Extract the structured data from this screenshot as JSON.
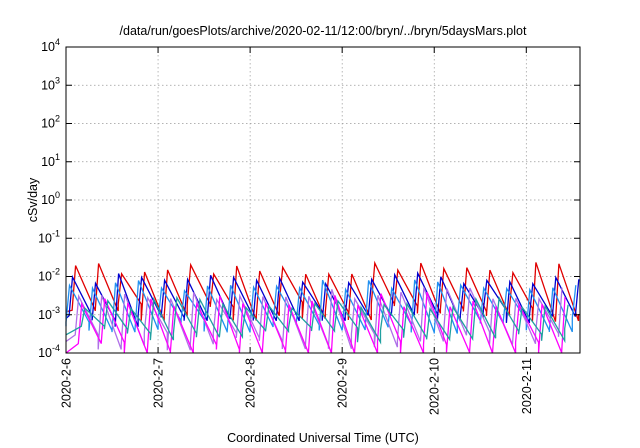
{
  "chart_data": {
    "type": "line",
    "title": "/data/run/goesPlots/archive/2020-02-11/12:00/bryn/../bryn/5daysMars.plot",
    "xlabel": "Coordinated Universal Time (UTC)",
    "ylabel": "cSv/day",
    "yscale": "log",
    "ylim": [
      0.0001,
      10000
    ],
    "xlim": [
      "2020-02-06T00:00",
      "2020-02-11T14:00"
    ],
    "grid": true,
    "legend": "none",
    "y_ticks": [
      {
        "value": 0.0001,
        "base": "10",
        "exp": "-4"
      },
      {
        "value": 0.001,
        "base": "10",
        "exp": "-3"
      },
      {
        "value": 0.01,
        "base": "10",
        "exp": "-2"
      },
      {
        "value": 0.1,
        "base": "10",
        "exp": "-1"
      },
      {
        "value": 1,
        "base": "10",
        "exp": "0"
      },
      {
        "value": 10,
        "base": "10",
        "exp": "1"
      },
      {
        "value": 100,
        "base": "10",
        "exp": "2"
      },
      {
        "value": 1000,
        "base": "10",
        "exp": "3"
      },
      {
        "value": 10000,
        "base": "10",
        "exp": "4"
      }
    ],
    "x_ticks": [
      {
        "value": "2020-02-06",
        "label": "2020-2-6"
      },
      {
        "value": "2020-02-07",
        "label": "2020-2-7"
      },
      {
        "value": "2020-02-08",
        "label": "2020-2-8"
      },
      {
        "value": "2020-02-09",
        "label": "2020-2-9"
      },
      {
        "value": "2020-02-10",
        "label": "2020-2-10"
      },
      {
        "value": "2020-02-11",
        "label": "2020-2-11"
      }
    ],
    "series": [
      {
        "color": "#e00000",
        "peak": 0.016,
        "trough": 0.0012,
        "offset_hours": 1.6,
        "jitter": 0.35
      },
      {
        "color": "#0000d0",
        "peak": 0.009,
        "trough": 0.0008,
        "offset_hours": 0.8,
        "jitter": 0.3
      },
      {
        "color": "#2090f0",
        "peak": 0.006,
        "trough": 0.0005,
        "offset_hours": 0.0,
        "jitter": 0.3
      },
      {
        "color": "#b070e8",
        "peak": 0.0035,
        "trough": 0.0002,
        "offset_hours": 2.4,
        "jitter": 0.35
      },
      {
        "color": "#ff00ff",
        "peak": 0.0025,
        "trough": 0.0001,
        "offset_hours": 3.2,
        "jitter": 0.4
      },
      {
        "color": "#20a0a0",
        "peak": 0.002,
        "trough": 0.0003,
        "offset_hours": 4.0,
        "jitter": 0.3
      }
    ]
  }
}
